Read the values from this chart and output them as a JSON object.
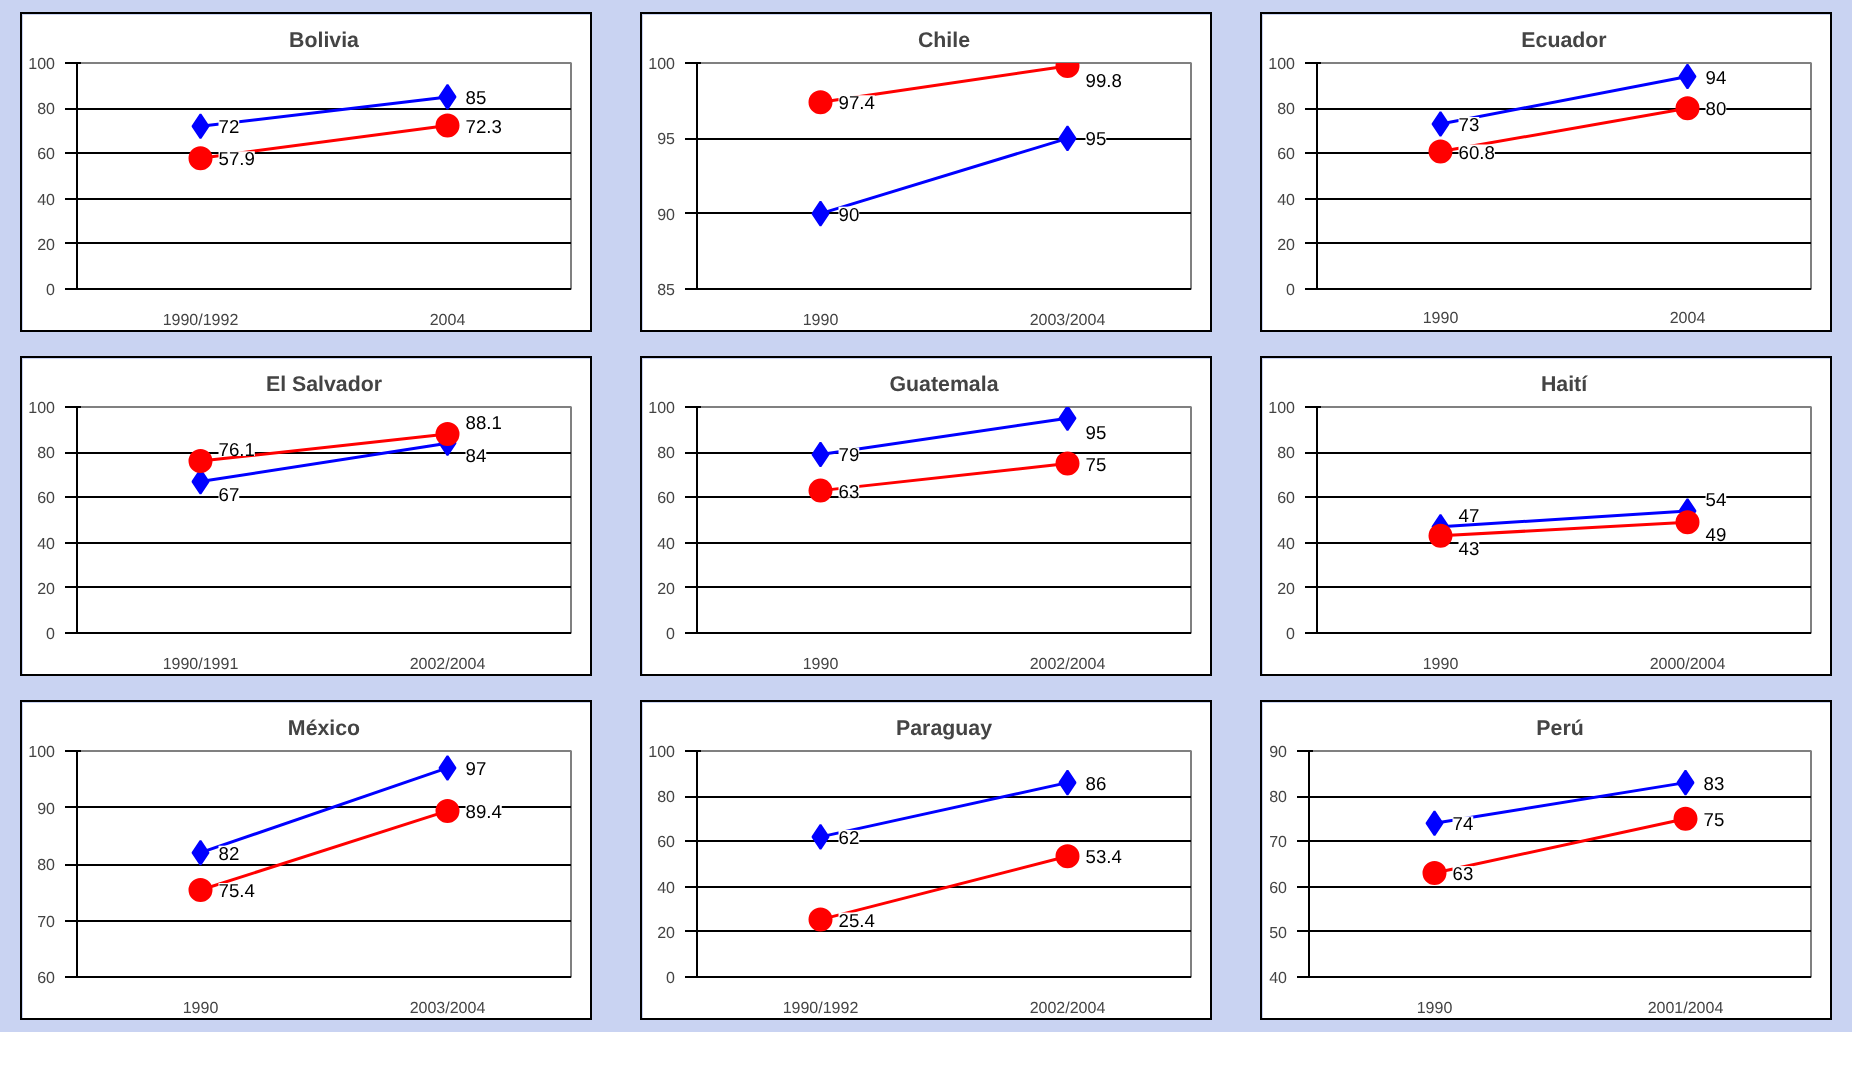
{
  "chart_data": [
    {
      "type": "line",
      "title": "Bolivia",
      "categories": [
        "1990/1992",
        "2004"
      ],
      "ylim": [
        0,
        100
      ],
      "yticks": [
        0,
        20,
        40,
        60,
        80,
        100
      ],
      "grid": "y",
      "data_labels": true,
      "series": [
        {
          "color": "#0000ff",
          "marker": "diamond",
          "values": [
            72,
            85
          ]
        },
        {
          "color": "#ff0000",
          "marker": "circle",
          "values": [
            57.9,
            72.3
          ]
        }
      ]
    },
    {
      "type": "line",
      "title": "Chile",
      "categories": [
        "1990",
        "2003/2004"
      ],
      "ylim": [
        85,
        100
      ],
      "yticks": [
        85,
        90,
        95,
        100
      ],
      "grid": "y",
      "data_labels": true,
      "series": [
        {
          "color": "#0000ff",
          "marker": "diamond",
          "values": [
            90,
            95
          ]
        },
        {
          "color": "#ff0000",
          "marker": "circle",
          "values": [
            97.4,
            99.8
          ]
        }
      ]
    },
    {
      "type": "line",
      "title": "Ecuador",
      "categories": [
        "1990",
        "2004"
      ],
      "ylim": [
        0,
        100
      ],
      "yticks": [
        0,
        20,
        40,
        60,
        80,
        100
      ],
      "grid": "y",
      "data_labels": true,
      "series": [
        {
          "color": "#0000ff",
          "marker": "diamond",
          "values": [
            73,
            94
          ]
        },
        {
          "color": "#ff0000",
          "marker": "circle",
          "values": [
            60.8,
            80
          ]
        }
      ]
    },
    {
      "type": "line",
      "title": "El Salvador",
      "categories": [
        "1990/1991",
        "2002/2004"
      ],
      "ylim": [
        0,
        100
      ],
      "yticks": [
        0,
        20,
        40,
        60,
        80,
        100
      ],
      "grid": "y",
      "data_labels": true,
      "series": [
        {
          "color": "#0000ff",
          "marker": "diamond",
          "values": [
            67,
            84
          ]
        },
        {
          "color": "#ff0000",
          "marker": "circle",
          "values": [
            76.1,
            88.1
          ]
        }
      ]
    },
    {
      "type": "line",
      "title": "Guatemala",
      "categories": [
        "1990",
        "2002/2004"
      ],
      "ylim": [
        0,
        100
      ],
      "yticks": [
        0,
        20,
        40,
        60,
        80,
        100
      ],
      "grid": "y",
      "data_labels": true,
      "series": [
        {
          "color": "#0000ff",
          "marker": "diamond",
          "values": [
            79,
            95
          ]
        },
        {
          "color": "#ff0000",
          "marker": "circle",
          "values": [
            63,
            75
          ]
        }
      ]
    },
    {
      "type": "line",
      "title": "Haití",
      "categories": [
        "1990",
        "2000/2004"
      ],
      "ylim": [
        0,
        100
      ],
      "yticks": [
        0,
        20,
        40,
        60,
        80,
        100
      ],
      "grid": "y",
      "data_labels": true,
      "series": [
        {
          "color": "#0000ff",
          "marker": "diamond",
          "values": [
            47,
            54
          ]
        },
        {
          "color": "#ff0000",
          "marker": "circle",
          "values": [
            43,
            49
          ]
        }
      ]
    },
    {
      "type": "line",
      "title": "México",
      "categories": [
        "1990",
        "2003/2004"
      ],
      "ylim": [
        60,
        100
      ],
      "yticks": [
        60,
        70,
        80,
        90,
        100
      ],
      "grid": "y",
      "data_labels": true,
      "series": [
        {
          "color": "#0000ff",
          "marker": "diamond",
          "values": [
            82,
            97
          ]
        },
        {
          "color": "#ff0000",
          "marker": "circle",
          "values": [
            75.4,
            89.4
          ]
        }
      ]
    },
    {
      "type": "line",
      "title": "Paraguay",
      "categories": [
        "1990/1992",
        "2002/2004"
      ],
      "ylim": [
        0,
        100
      ],
      "yticks": [
        0,
        20,
        40,
        60,
        80,
        100
      ],
      "grid": "y",
      "data_labels": true,
      "series": [
        {
          "color": "#0000ff",
          "marker": "diamond",
          "values": [
            62,
            86
          ]
        },
        {
          "color": "#ff0000",
          "marker": "circle",
          "values": [
            25.4,
            53.4
          ]
        }
      ]
    },
    {
      "type": "line",
      "title": "Perú",
      "categories": [
        "1990",
        "2001/2004"
      ],
      "ylim": [
        40,
        90
      ],
      "yticks": [
        40,
        50,
        60,
        70,
        80,
        90
      ],
      "grid": "y",
      "data_labels": true,
      "series": [
        {
          "color": "#0000ff",
          "marker": "diamond",
          "values": [
            74,
            83
          ]
        },
        {
          "color": "#ff0000",
          "marker": "circle",
          "values": [
            63,
            75
          ]
        }
      ]
    }
  ]
}
